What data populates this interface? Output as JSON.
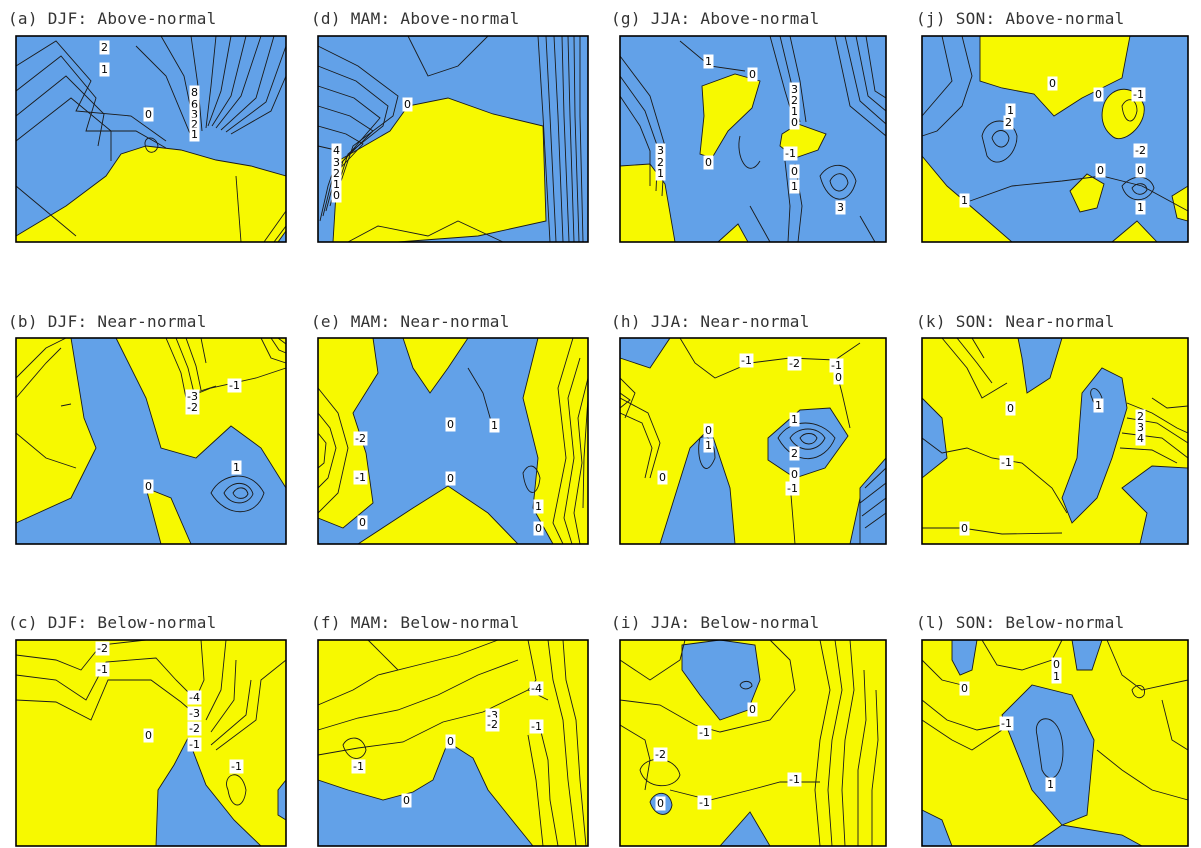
{
  "colors": {
    "positive": "#f7f900",
    "negative": "#62a1e8",
    "contour": "#1a1a1a",
    "frame": "#000000"
  },
  "chart_data": [
    {
      "id": "a",
      "type": "contour",
      "title": "(a)  DJF: Above-normal",
      "contour_labels": [
        "2",
        "1",
        "8",
        "6",
        "3",
        "2",
        "1",
        "0"
      ],
      "positive_region": [
        [
          0.0,
          0.96
        ],
        [
          0.2,
          0.8
        ],
        [
          0.38,
          0.62
        ],
        [
          0.52,
          0.5
        ],
        [
          0.65,
          0.54
        ],
        [
          0.8,
          0.58
        ],
        [
          0.9,
          0.62
        ],
        [
          1.0,
          0.7
        ],
        [
          1.0,
          0.95
        ],
        [
          0.98,
          1.0
        ],
        [
          0.0,
          1.0
        ]
      ]
    },
    {
      "id": "d",
      "type": "contour",
      "title": "(d)  MAM: Above-normal",
      "contour_labels": [
        "0",
        "4",
        "3",
        "2",
        "1",
        "0"
      ],
      "positive_region": [
        [
          0.12,
          0.92
        ],
        [
          0.15,
          0.6
        ],
        [
          0.27,
          0.46
        ],
        [
          0.33,
          0.34
        ],
        [
          0.4,
          0.32
        ],
        [
          0.6,
          0.38
        ],
        [
          0.76,
          0.44
        ],
        [
          0.76,
          0.9
        ],
        [
          0.55,
          0.96
        ],
        [
          0.3,
          0.98
        ],
        [
          0.12,
          0.98
        ]
      ]
    },
    {
      "id": "g",
      "type": "contour",
      "title": "(g)  JJA: Above-normal",
      "contour_labels": [
        "1",
        "0",
        "3",
        "2",
        "1",
        "0",
        "3",
        "2",
        "1",
        "0",
        "-1",
        "0",
        "1",
        "3"
      ],
      "positive_region": [
        [
          0.0,
          0.65
        ],
        [
          0.12,
          0.62
        ],
        [
          0.18,
          0.7
        ],
        [
          0.2,
          0.95
        ],
        [
          0.0,
          0.98
        ]
      ]
    },
    {
      "id": "j",
      "type": "contour",
      "title": "(j)  SON: Above-normal",
      "contour_labels": [
        "0",
        "0",
        "-1",
        "1",
        "2",
        "-2",
        "0",
        "0",
        "1",
        "1"
      ],
      "positive_region": [
        [
          0.22,
          0.0
        ],
        [
          0.78,
          0.0
        ],
        [
          0.75,
          0.2
        ],
        [
          0.6,
          0.32
        ],
        [
          0.5,
          0.4
        ],
        [
          0.42,
          0.28
        ],
        [
          0.3,
          0.25
        ],
        [
          0.22,
          0.22
        ]
      ]
    },
    {
      "id": "b",
      "type": "contour",
      "title": "(b)  DJF: Near-normal",
      "contour_labels": [
        "-3",
        "-2",
        "-1",
        "1",
        "0"
      ],
      "positive_region": [
        [
          0.0,
          0.0
        ],
        [
          0.2,
          0.0
        ],
        [
          0.36,
          0.28
        ],
        [
          0.3,
          0.55
        ],
        [
          0.06,
          0.82
        ],
        [
          0.0,
          0.84
        ]
      ]
    },
    {
      "id": "e",
      "type": "contour",
      "title": "(e)  MAM: Near-normal",
      "contour_labels": [
        "0",
        "1",
        "-2",
        "-1",
        "0",
        "0",
        "1",
        "0"
      ],
      "positive_region": [
        [
          0.0,
          0.02
        ],
        [
          0.2,
          0.0
        ],
        [
          0.22,
          0.18
        ],
        [
          0.12,
          0.38
        ],
        [
          0.18,
          0.58
        ],
        [
          0.2,
          0.82
        ],
        [
          0.0,
          0.9
        ]
      ]
    },
    {
      "id": "h",
      "type": "contour",
      "title": "(h)  JJA: Near-normal",
      "contour_labels": [
        "-1",
        "-2",
        "-1",
        "0",
        "0",
        "1",
        "1",
        "2",
        "0",
        "-1",
        "0"
      ],
      "positive_region": [
        [
          0.15,
          0.0
        ],
        [
          0.78,
          0.0
        ],
        [
          0.62,
          0.28
        ],
        [
          0.42,
          0.45
        ],
        [
          0.2,
          0.22
        ]
      ]
    },
    {
      "id": "k",
      "type": "contour",
      "title": "(k)  SON: Near-normal",
      "contour_labels": [
        "0",
        "1",
        "2",
        "3",
        "4",
        "-1",
        "0"
      ],
      "positive_region": [
        [
          0.0,
          0.0
        ],
        [
          0.36,
          0.0
        ],
        [
          0.45,
          0.18
        ],
        [
          0.3,
          0.3
        ],
        [
          0.12,
          0.42
        ],
        [
          0.0,
          0.4
        ]
      ]
    },
    {
      "id": "c",
      "type": "contour",
      "title": "(c)  DJF: Below-normal",
      "contour_labels": [
        "-2",
        "-1",
        "-4",
        "-3",
        "-2",
        "-1",
        "0",
        "-1"
      ],
      "negative_region": [
        [
          0.55,
          1.0
        ],
        [
          0.58,
          0.75
        ],
        [
          0.62,
          0.5
        ],
        [
          0.72,
          0.72
        ],
        [
          0.85,
          0.95
        ],
        [
          0.86,
          1.0
        ]
      ]
    },
    {
      "id": "f",
      "type": "contour",
      "title": "(f)  MAM: Below-normal",
      "contour_labels": [
        "-4",
        "-3",
        "-2",
        "-1",
        "0",
        "-1",
        "0"
      ],
      "negative_region": [
        [
          0.0,
          1.0
        ],
        [
          0.0,
          0.68
        ],
        [
          0.25,
          0.76
        ],
        [
          0.42,
          0.68
        ],
        [
          0.48,
          0.5
        ],
        [
          0.6,
          0.62
        ],
        [
          0.72,
          0.86
        ],
        [
          0.8,
          1.0
        ]
      ]
    },
    {
      "id": "i",
      "type": "contour",
      "title": "(i)  JJA: Below-normal",
      "contour_labels": [
        "0",
        "-1",
        "-2",
        "-1",
        "-1",
        "0"
      ],
      "negative_region": [
        [
          0.22,
          0.05
        ],
        [
          0.38,
          0.0
        ],
        [
          0.5,
          0.05
        ],
        [
          0.52,
          0.3
        ],
        [
          0.45,
          0.4
        ],
        [
          0.35,
          0.3
        ],
        [
          0.22,
          0.2
        ]
      ]
    },
    {
      "id": "l",
      "type": "contour",
      "title": "(l)  SON: Below-normal",
      "contour_labels": [
        "0",
        "0",
        "1",
        "-1",
        "1"
      ],
      "negative_region": [
        [
          0.3,
          0.35
        ],
        [
          0.42,
          0.22
        ],
        [
          0.58,
          0.28
        ],
        [
          0.65,
          0.5
        ],
        [
          0.62,
          0.85
        ],
        [
          0.52,
          0.9
        ],
        [
          0.4,
          0.7
        ]
      ]
    }
  ]
}
